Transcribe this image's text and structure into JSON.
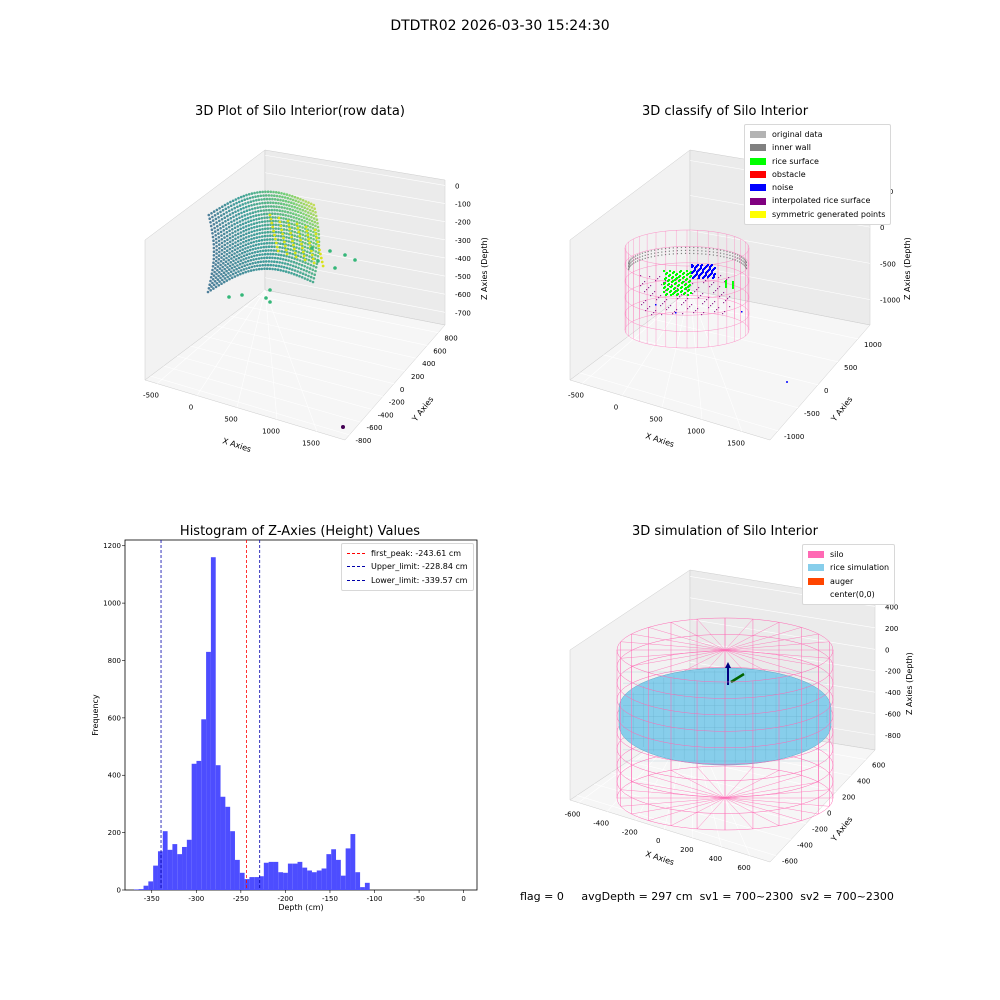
{
  "suptitle": "DTDTR02 2026-03-30 15:24:30",
  "footer": {
    "flag": "flag = 0",
    "avg_depth": "avgDepth = 297 cm",
    "sv1": "sv1 = 700~2300",
    "sv2": "sv2 = 700~2300"
  },
  "chart_data": [
    {
      "type": "scatter",
      "title": "3D Plot of Silo Interior(row data)",
      "xlabel": "X Axies",
      "ylabel": "Y Axies",
      "zlabel": "Z Axies (Depth)",
      "xticks": [
        "-500",
        "0",
        "500",
        "1000",
        "1500"
      ],
      "yticks": [
        "-800",
        "-600",
        "-400",
        "-200",
        "0",
        "200",
        "400",
        "600",
        "800"
      ],
      "zticks": [
        "0",
        "-100",
        "-200",
        "-300",
        "-400",
        "-500",
        "-600",
        "-700"
      ],
      "colormap": "viridis"
    },
    {
      "type": "scatter",
      "title": "3D classify of Silo Interior",
      "xlabel": "X Axies",
      "ylabel": "Y Axies",
      "zlabel": "Z Axies (Depth)",
      "xticks": [
        "-500",
        "0",
        "500",
        "1000",
        "1500"
      ],
      "yticks": [
        "-1000",
        "-500",
        "0",
        "500",
        "1000"
      ],
      "zticks": [
        "500",
        "0",
        "-500",
        "-1000"
      ],
      "legend": [
        {
          "label": "original data",
          "color": "#b3b3b3"
        },
        {
          "label": "inner wall",
          "color": "#808080"
        },
        {
          "label": "rice surface",
          "color": "#00ff00"
        },
        {
          "label": "obstacle",
          "color": "#ff0000"
        },
        {
          "label": "noise",
          "color": "#0000ff"
        },
        {
          "label": "interpolated rice surface",
          "color": "#800080"
        },
        {
          "label": "symmetric generated points",
          "color": "#ffff00"
        }
      ],
      "wire_color": "#ff69b4"
    },
    {
      "type": "bar",
      "title": "Histogram of Z-Axies (Height) Values",
      "xlabel": "Depth (cm)",
      "ylabel": "Frequency",
      "xlim": [
        -380,
        15
      ],
      "ylim": [
        0,
        1220
      ],
      "xticks": [
        -350,
        -300,
        -250,
        -200,
        -150,
        -100,
        -50,
        0
      ],
      "yticks": [
        0,
        200,
        400,
        600,
        800,
        1000,
        1200
      ],
      "bar_color": "#4d4dff",
      "bin_width": 5.4,
      "bin_start": -370,
      "values": [
        2,
        3,
        15,
        30,
        85,
        135,
        205,
        140,
        160,
        125,
        150,
        175,
        440,
        450,
        595,
        830,
        1160,
        435,
        325,
        290,
        205,
        105,
        60,
        38,
        45,
        45,
        48,
        95,
        98,
        98,
        62,
        60,
        92,
        92,
        98,
        78,
        68,
        62,
        68,
        75,
        125,
        142,
        105,
        50,
        145,
        195,
        62,
        10,
        25
      ],
      "lines": [
        {
          "label": "first_peak: -243.61 cm",
          "value": -243.61,
          "color": "#ff0000"
        },
        {
          "label": "Upper_limit: -228.84 cm",
          "value": -228.84,
          "color": "#0000aa"
        },
        {
          "label": "Lower_limit: -339.57 cm",
          "value": -339.57,
          "color": "#0000aa"
        }
      ]
    },
    {
      "type": "scatter",
      "title": "3D simulation of Silo Interior",
      "xlabel": "X Axies",
      "ylabel": "Y Axies",
      "zlabel": "Z Axies (Depth)",
      "xticks": [
        "-600",
        "-400",
        "-200",
        "0",
        "200",
        "400",
        "600"
      ],
      "yticks": [
        "-600",
        "-400",
        "-200",
        "0",
        "200",
        "400",
        "600"
      ],
      "zticks": [
        "400",
        "200",
        "0",
        "-200",
        "-400",
        "-600",
        "-800"
      ],
      "legend": [
        {
          "label": "silo",
          "color": "#ff69b4"
        },
        {
          "label": "rice simulation",
          "color": "#87ceeb"
        },
        {
          "label": "auger",
          "color": "#ff4500"
        },
        {
          "label": "center(0,0)",
          "color": "#ffffff"
        }
      ]
    }
  ]
}
